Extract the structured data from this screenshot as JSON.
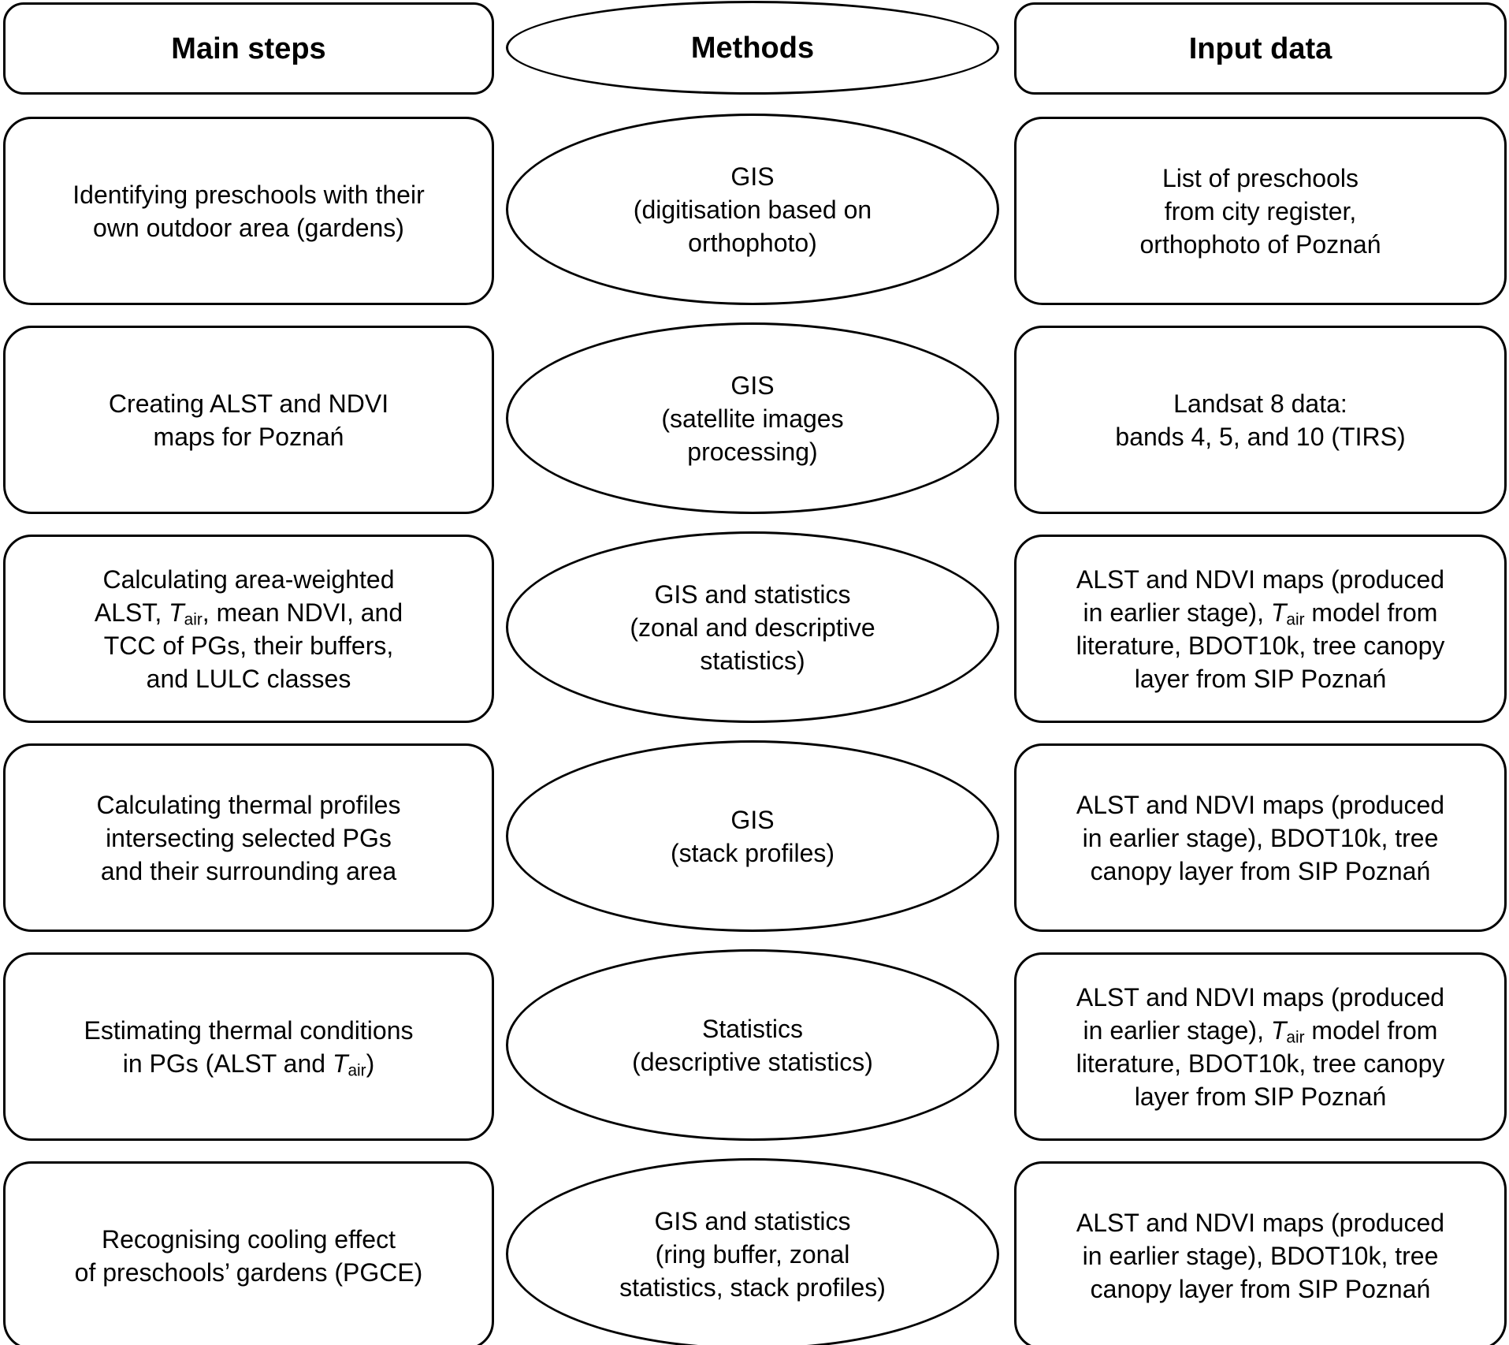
{
  "colors": {
    "background": "#ffffff",
    "outline": "#000000",
    "text": "#000000"
  },
  "diagram": {
    "columns": [
      {
        "id": "main-steps",
        "label": "Main steps",
        "shape": "rounded-rect"
      },
      {
        "id": "methods",
        "label": "Methods",
        "shape": "ellipse"
      },
      {
        "id": "input-data",
        "label": "Input data",
        "shape": "rounded-rect"
      }
    ],
    "rows": [
      {
        "step": [
          {
            "t": "Identifying preschools with their\nown outdoor area (gardens)"
          }
        ],
        "method": [
          {
            "t": "GIS\n(digitisation based on\northophoto)"
          }
        ],
        "input": [
          {
            "t": "List of preschools\nfrom city register,\northophoto of Poznań"
          }
        ]
      },
      {
        "step": [
          {
            "t": "Creating ALST and NDVI\nmaps for Poznań"
          }
        ],
        "method": [
          {
            "t": "GIS\n(satellite images\nprocessing)"
          }
        ],
        "input": [
          {
            "t": "Landsat 8 data:\nbands 4, 5, and 10 (TIRS)"
          }
        ]
      },
      {
        "step": [
          {
            "t": "Calculating area-weighted\nALST, "
          },
          {
            "t": "T",
            "style": "italic"
          },
          {
            "t": "air",
            "style": "sub"
          },
          {
            "t": ", mean NDVI, and\nTCC of PGs, their buffers,\nand LULC classes"
          }
        ],
        "method": [
          {
            "t": "GIS and statistics\n(zonal and descriptive\nstatistics)"
          }
        ],
        "input": [
          {
            "t": "ALST and NDVI maps (produced\nin earlier stage), "
          },
          {
            "t": "T",
            "style": "italic"
          },
          {
            "t": "air",
            "style": "sub"
          },
          {
            "t": " model from\nliterature, BDOT10k, tree canopy\nlayer from SIP Poznań"
          }
        ]
      },
      {
        "step": [
          {
            "t": "Calculating thermal profiles\nintersecting selected PGs\nand their surrounding area"
          }
        ],
        "method": [
          {
            "t": "GIS\n(stack profiles)"
          }
        ],
        "input": [
          {
            "t": "ALST and NDVI maps (produced\nin earlier stage), BDOT10k, tree\ncanopy layer from SIP Poznań"
          }
        ]
      },
      {
        "step": [
          {
            "t": "Estimating thermal conditions\nin PGs (ALST and "
          },
          {
            "t": "T",
            "style": "italic"
          },
          {
            "t": "air",
            "style": "sub"
          },
          {
            "t": ")"
          }
        ],
        "method": [
          {
            "t": "Statistics\n(descriptive statistics)"
          }
        ],
        "input": [
          {
            "t": "ALST and NDVI maps (produced\nin earlier stage), "
          },
          {
            "t": "T",
            "style": "italic"
          },
          {
            "t": "air",
            "style": "sub"
          },
          {
            "t": " model from\nliterature, BDOT10k, tree canopy\nlayer from SIP Poznań"
          }
        ]
      },
      {
        "step": [
          {
            "t": "Recognising cooling effect\nof preschools’ gardens (PGCE)"
          }
        ],
        "method": [
          {
            "t": "GIS and statistics\n(ring buffer, zonal\nstatistics, stack profiles)"
          }
        ],
        "input": [
          {
            "t": "ALST and NDVI maps (produced\nin earlier stage), BDOT10k, tree\ncanopy layer from SIP Poznań"
          }
        ]
      }
    ]
  }
}
